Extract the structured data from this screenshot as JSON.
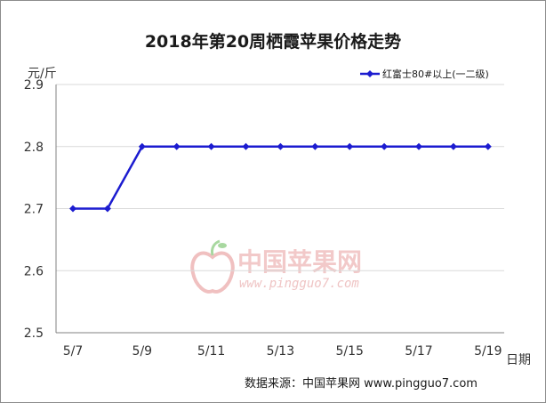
{
  "chart_data": {
    "type": "line",
    "title": "2018年第20周栖霞苹果价格走势",
    "ylabel": "元/斤",
    "xlabel": "日期",
    "ylim": [
      2.5,
      2.9
    ],
    "yticks": [
      "2.5",
      "2.6",
      "2.7",
      "2.8",
      "2.9"
    ],
    "x": [
      "5/7",
      "5/8",
      "5/9",
      "5/10",
      "5/11",
      "5/12",
      "5/13",
      "5/14",
      "5/15",
      "5/16",
      "5/17",
      "5/18",
      "5/19"
    ],
    "xtick_labels": [
      "5/7",
      "",
      "5/9",
      "",
      "5/11",
      "",
      "5/13",
      "",
      "5/15",
      "",
      "5/17",
      "",
      "5/19"
    ],
    "series": [
      {
        "name": "红富士80#以上(一二级)",
        "values": [
          2.7,
          2.7,
          2.8,
          2.8,
          2.8,
          2.8,
          2.8,
          2.8,
          2.8,
          2.8,
          2.8,
          2.8,
          2.8
        ]
      }
    ],
    "grid": "horizontal",
    "legend_position": "top-right"
  },
  "colors": {
    "series_line": "#1c1cd0",
    "grid": "#d9d9d9",
    "axis": "#808080"
  },
  "watermark": {
    "name": "中国苹果网",
    "url": "www.pingguo7.com"
  },
  "source": {
    "text": "数据来源：中国苹果网 www.pingguo7.com"
  }
}
